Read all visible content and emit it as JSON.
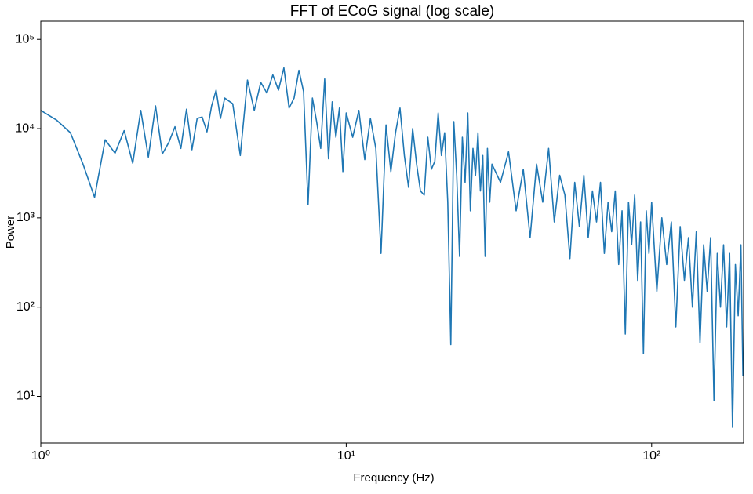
{
  "chart_data": {
    "type": "line",
    "title": "FFT of ECoG signal (log scale)",
    "x_label": "Frequency (Hz)",
    "y_label": "Power",
    "xscale": "log",
    "yscale": "log",
    "xlim": [
      1,
      200
    ],
    "ylim": [
      3,
      160000
    ],
    "xticks": [
      {
        "value": 1,
        "label": "10⁰"
      },
      {
        "value": 10,
        "label": "10¹"
      },
      {
        "value": 100,
        "label": "10²"
      }
    ],
    "yticks": [
      {
        "value": 10,
        "label": "10¹"
      },
      {
        "value": 100,
        "label": "10²"
      },
      {
        "value": 1000,
        "label": "10³"
      },
      {
        "value": 10000,
        "label": "10⁴"
      },
      {
        "value": 100000,
        "label": "10⁵"
      }
    ],
    "x": [
      1.0,
      1.125,
      1.25,
      1.375,
      1.5,
      1.625,
      1.75,
      1.875,
      2.0,
      2.125,
      2.25,
      2.375,
      2.5,
      2.625,
      2.75,
      2.875,
      3.0,
      3.125,
      3.25,
      3.375,
      3.5,
      3.625,
      3.75,
      3.875,
      4.0,
      4.25,
      4.5,
      4.75,
      5.0,
      5.25,
      5.5,
      5.75,
      6.0,
      6.25,
      6.5,
      6.75,
      7.0,
      7.25,
      7.5,
      7.75,
      8.0,
      8.25,
      8.5,
      8.75,
      9.0,
      9.25,
      9.5,
      9.75,
      10.0,
      10.5,
      11.0,
      11.5,
      12.0,
      12.5,
      13.0,
      13.5,
      14.0,
      14.5,
      15.0,
      15.5,
      16.0,
      16.5,
      17.0,
      17.5,
      18.0,
      18.5,
      19.0,
      19.5,
      20.0,
      20.5,
      21.0,
      21.5,
      22.0,
      22.5,
      23.0,
      23.5,
      24.0,
      24.5,
      25.0,
      25.5,
      26.0,
      26.5,
      27.0,
      27.5,
      28.0,
      28.5,
      29.0,
      29.5,
      30.0,
      32,
      34,
      36,
      38,
      40,
      42,
      44,
      46,
      48,
      50,
      52,
      54,
      56,
      58,
      60,
      62,
      64,
      66,
      68,
      70,
      72,
      74,
      76,
      78,
      80,
      82,
      84,
      86,
      88,
      90,
      92,
      94,
      96,
      98,
      100,
      104,
      108,
      112,
      116,
      120,
      124,
      128,
      132,
      136,
      140,
      144,
      148,
      152,
      156,
      160,
      164,
      168,
      172,
      176,
      180,
      184,
      188,
      192,
      196,
      199
    ],
    "series": [
      {
        "name": "Power",
        "color": "#1f77b4",
        "values": [
          16000,
          12500,
          9000,
          4000,
          1700,
          7500,
          5300,
          9500,
          4100,
          16000,
          4800,
          18000,
          5200,
          7000,
          10500,
          6000,
          16500,
          5800,
          13000,
          13500,
          9200,
          18000,
          27000,
          13000,
          22000,
          19000,
          5000,
          35000,
          16000,
          33000,
          25000,
          40000,
          27000,
          48000,
          17000,
          22000,
          45000,
          26000,
          1400,
          22000,
          12000,
          6000,
          36000,
          4600,
          20000,
          8000,
          17000,
          3300,
          15000,
          8000,
          16000,
          4500,
          13000,
          6000,
          400,
          11000,
          3300,
          9000,
          17000,
          5000,
          2200,
          10000,
          4000,
          2000,
          1800,
          8000,
          3500,
          4300,
          15000,
          5000,
          9000,
          1500,
          38,
          12000,
          3000,
          370,
          8000,
          2500,
          15000,
          1200,
          6000,
          3000,
          9000,
          2000,
          5000,
          370,
          6000,
          1500,
          4000,
          2500,
          5500,
          1200,
          3500,
          600,
          4000,
          1500,
          6000,
          900,
          3000,
          1800,
          350,
          2500,
          800,
          3000,
          600,
          2000,
          900,
          2500,
          400,
          1500,
          700,
          2000,
          300,
          1200,
          50,
          1500,
          500,
          1800,
          200,
          900,
          30,
          1200,
          400,
          1500,
          150,
          1000,
          300,
          900,
          60,
          800,
          200,
          600,
          100,
          700,
          40,
          500,
          150,
          600,
          9,
          400,
          100,
          500,
          60,
          400,
          4.5,
          300,
          80,
          500,
          17
        ]
      }
    ]
  }
}
